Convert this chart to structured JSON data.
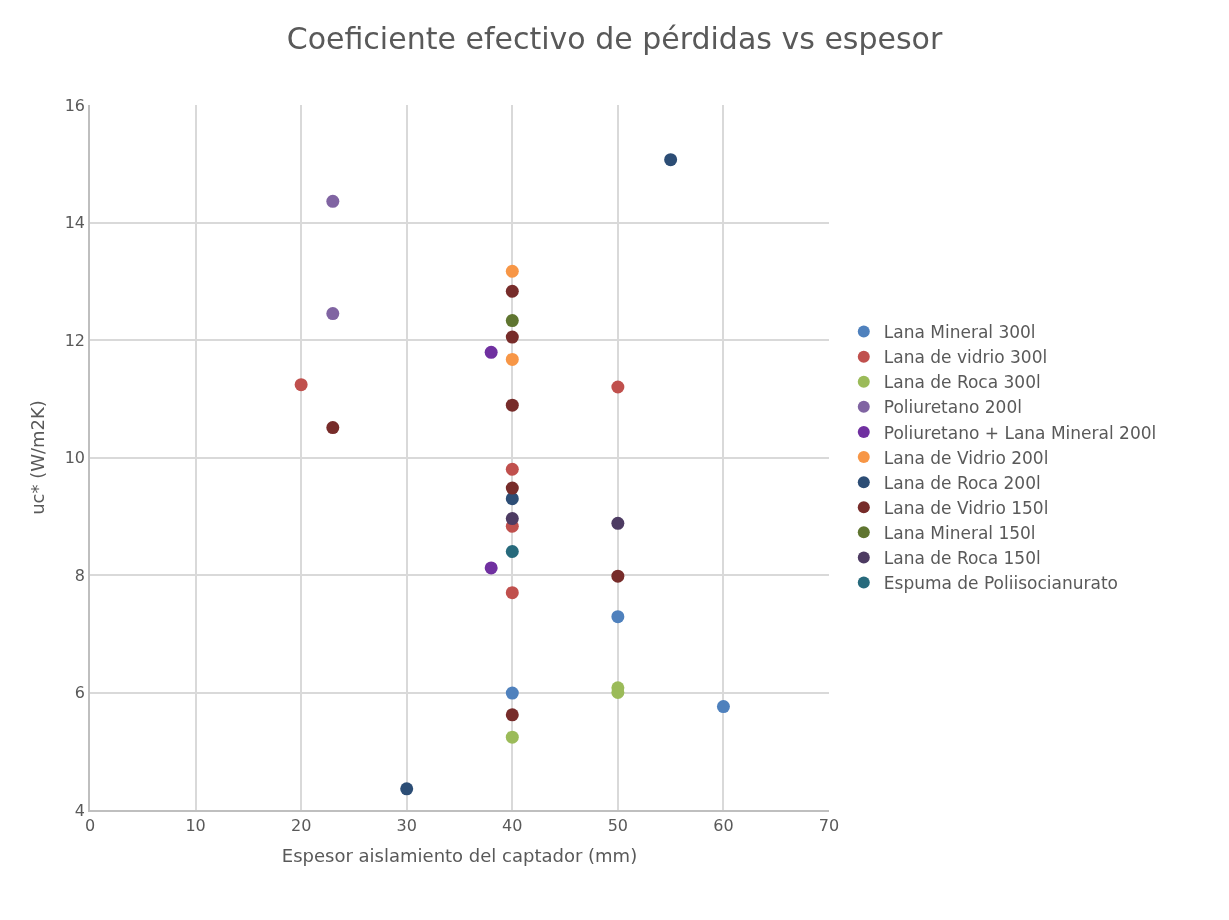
{
  "chart_data": {
    "type": "scatter",
    "title": "Coeficiente efectivo de pérdidas vs espesor",
    "xlabel": "Espesor aislamiento del captador (mm)",
    "ylabel": "uc* (W/m2K)",
    "xlim": [
      0,
      70
    ],
    "xticks": [
      0,
      10,
      20,
      30,
      40,
      50,
      60,
      70
    ],
    "ylim": [
      4,
      16
    ],
    "yticks": [
      4,
      6,
      8,
      10,
      12,
      14,
      16
    ],
    "grid": true,
    "legend": "right",
    "marker": "circle",
    "series": [
      {
        "name": "Lana Mineral 300l",
        "color": "#4f81bd",
        "x": [
          40,
          50,
          60
        ],
        "values": [
          5.99,
          7.29,
          5.76
        ]
      },
      {
        "name": "Lana de vidrio 300l",
        "color": "#c0504d",
        "x": [
          20,
          50,
          40,
          40,
          40
        ],
        "values": [
          11.24,
          11.2,
          9.8,
          8.83,
          7.7
        ]
      },
      {
        "name": "Lana de Roca 300l",
        "color": "#9bbb59",
        "x": [
          40,
          50,
          50
        ],
        "values": [
          5.24,
          6.08,
          6.0
        ]
      },
      {
        "name": "Poliuretano 200l",
        "color": "#8064a2",
        "x": [
          23,
          23
        ],
        "values": [
          14.36,
          12.45
        ]
      },
      {
        "name": "Poliuretano + Lana Mineral 200l",
        "color": "#7030a0",
        "x": [
          38,
          38
        ],
        "values": [
          11.79,
          8.12
        ]
      },
      {
        "name": "Lana de Vidrio 200l",
        "color": "#f79646",
        "x": [
          40,
          40
        ],
        "values": [
          13.17,
          11.67
        ]
      },
      {
        "name": "Lana de Roca 200l",
        "color": "#2c4d75",
        "x": [
          55,
          30,
          40
        ],
        "values": [
          15.07,
          4.36,
          9.3
        ]
      },
      {
        "name": "Lana de Vidrio 150l",
        "color": "#772c2a",
        "x": [
          40,
          40,
          40,
          23,
          40,
          50,
          40
        ],
        "values": [
          12.83,
          12.05,
          10.89,
          10.51,
          9.48,
          7.98,
          5.62
        ]
      },
      {
        "name": "Lana Mineral 150l",
        "color": "#5f7530",
        "x": [
          40
        ],
        "values": [
          12.33
        ]
      },
      {
        "name": "Lana de Roca 150l",
        "color": "#4d3b62",
        "x": [
          40,
          50
        ],
        "values": [
          8.96,
          8.88
        ]
      },
      {
        "name": "Espuma de Poliisocianurato",
        "color": "#276a7c",
        "x": [
          40
        ],
        "values": [
          8.4
        ]
      }
    ]
  }
}
